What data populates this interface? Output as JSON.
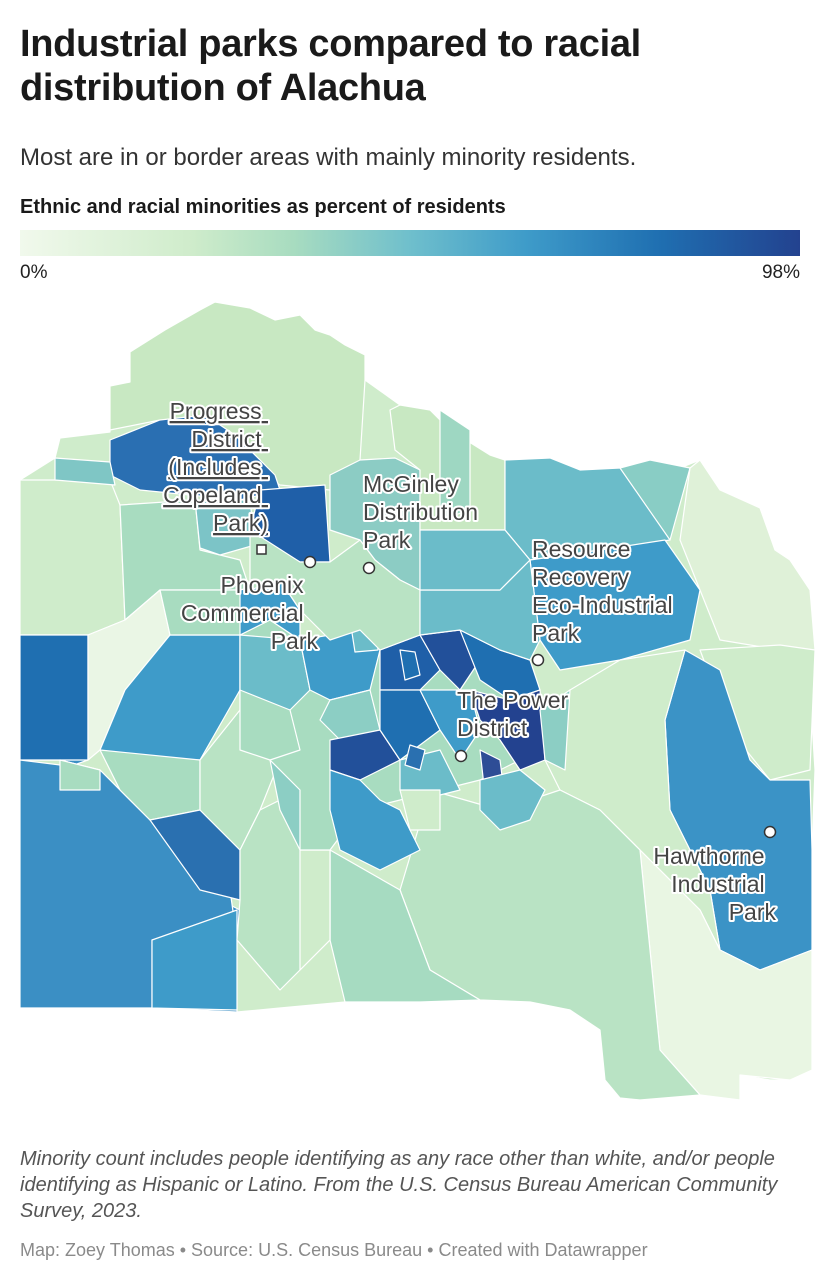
{
  "title": "Industrial parks compared to racial distribution of Alachua",
  "subtitle": "Most are in or border areas with mainly minority residents.",
  "legend": {
    "title": "Ethnic and racial minorities as percent of residents",
    "min": "0%",
    "max": "98%",
    "colors": [
      "#f1f9ec",
      "#cfeccb",
      "#a8dcc0",
      "#6fbfcc",
      "#3e9bc9",
      "#1f6fb1",
      "#23428f"
    ]
  },
  "markers": [
    {
      "id": "progress",
      "label_lines": [
        "Progress",
        "District",
        "(Includes",
        "Copeland",
        "Park)"
      ],
      "shape": "square"
    },
    {
      "id": "phoenix",
      "label_lines": [
        "Phoenix",
        "Commercial",
        "Park"
      ],
      "shape": "circle"
    },
    {
      "id": "mcginley",
      "label_lines": [
        "McGinley",
        "Distribution",
        "Park"
      ],
      "shape": "circle"
    },
    {
      "id": "resource",
      "label_lines": [
        "Resource",
        "Recovery",
        "Eco-Industrial",
        "Park"
      ],
      "shape": "circle"
    },
    {
      "id": "power",
      "label_lines": [
        "The Power",
        "District"
      ],
      "shape": "circle"
    },
    {
      "id": "hawthorne",
      "label_lines": [
        "Hawthorne",
        "Industrial",
        "Park"
      ],
      "shape": "circle"
    }
  ],
  "note": "Minority count includes people identifying as any race other than white, and/or people identifying as Hispanic or Latino. From the U.S. Census Bureau American Community Survey, 2023.",
  "byline": "Map: Zoey Thomas • Source: U.S. Census Bureau • Created with Datawrapper"
}
